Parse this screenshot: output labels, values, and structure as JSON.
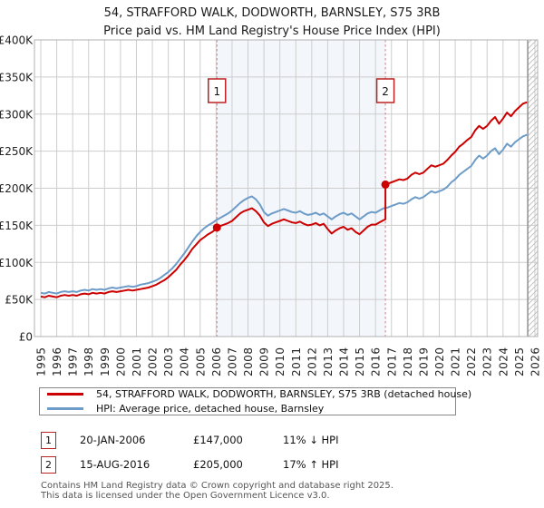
{
  "title": {
    "line1": "54, STRAFFORD WALK, DODWORTH, BARNSLEY, S75 3RB",
    "line2": "Price paid vs. HM Land Registry's House Price Index (HPI)"
  },
  "chart_data": {
    "type": "line",
    "title": "54, STRAFFORD WALK, DODWORTH, BARNSLEY, S75 3RB — Price paid vs. HPI",
    "xlabel": "",
    "ylabel": "",
    "x_range": [
      1995,
      2026
    ],
    "ylim": [
      0,
      400000
    ],
    "grid": true,
    "x_axis": {
      "ticks": [
        1995,
        1996,
        1997,
        1998,
        1999,
        2000,
        2001,
        2002,
        2003,
        2004,
        2005,
        2006,
        2007,
        2008,
        2009,
        2010,
        2011,
        2012,
        2013,
        2014,
        2015,
        2016,
        2017,
        2018,
        2019,
        2020,
        2021,
        2022,
        2023,
        2024,
        2025,
        2026
      ]
    },
    "y_axis": {
      "max": 400000,
      "ticks": [
        {
          "value": 0,
          "label": "£0"
        },
        {
          "value": 50000,
          "label": "£50K"
        },
        {
          "value": 100000,
          "label": "£100K"
        },
        {
          "value": 150000,
          "label": "£150K"
        },
        {
          "value": 200000,
          "label": "£200K"
        },
        {
          "value": 250000,
          "label": "£250K"
        },
        {
          "value": 300000,
          "label": "£300K"
        },
        {
          "value": 350000,
          "label": "£350K"
        },
        {
          "value": 400000,
          "label": "£400K"
        }
      ]
    },
    "colors": {
      "property": "#cc0000",
      "hpi": "#6d9cc8",
      "shade": "rgba(100,140,210,0.08)",
      "dashed": "#e07878",
      "grid": "#cdcdcd",
      "border": "#b0b0b0",
      "hatch": "#c4c4c4",
      "cutoff": "#909090",
      "annotation_border": "#bb2222"
    },
    "shade_between": [
      2006.05,
      2016.62
    ],
    "hatch_from_year": 2025.55,
    "sales": [
      {
        "n": "1",
        "date": "20-JAN-2006",
        "year_frac": 2006.05,
        "price": 147000,
        "price_label": "£147,000",
        "hpi_delta": "11% ↓ HPI"
      },
      {
        "n": "2",
        "date": "15-AUG-2016",
        "year_frac": 2016.62,
        "price": 205000,
        "price_label": "£205,000",
        "hpi_delta": "17% ↑ HPI"
      }
    ],
    "series": [
      {
        "name": "54, STRAFFORD WALK, DODWORTH, BARNSLEY, S75 3RB (detached house)",
        "color": "#cc0000",
        "points": [
          [
            1995.0,
            54000
          ],
          [
            1995.25,
            53000
          ],
          [
            1995.5,
            55000
          ],
          [
            1995.75,
            54000
          ],
          [
            1996.0,
            53000
          ],
          [
            1996.25,
            55000
          ],
          [
            1996.5,
            56000
          ],
          [
            1996.75,
            55000
          ],
          [
            1997.0,
            56000
          ],
          [
            1997.25,
            55000
          ],
          [
            1997.5,
            57000
          ],
          [
            1997.75,
            58000
          ],
          [
            1998.0,
            57000
          ],
          [
            1998.25,
            59000
          ],
          [
            1998.5,
            58000
          ],
          [
            1998.75,
            59000
          ],
          [
            1999.0,
            58000
          ],
          [
            1999.25,
            60000
          ],
          [
            1999.5,
            61000
          ],
          [
            1999.75,
            60000
          ],
          [
            2000.0,
            61000
          ],
          [
            2000.25,
            62000
          ],
          [
            2000.5,
            63000
          ],
          [
            2000.75,
            62000
          ],
          [
            2001.0,
            63000
          ],
          [
            2001.25,
            64000
          ],
          [
            2001.5,
            65000
          ],
          [
            2001.75,
            66000
          ],
          [
            2002.0,
            68000
          ],
          [
            2002.25,
            70000
          ],
          [
            2002.5,
            73000
          ],
          [
            2002.75,
            76000
          ],
          [
            2003.0,
            80000
          ],
          [
            2003.25,
            85000
          ],
          [
            2003.5,
            90000
          ],
          [
            2003.75,
            97000
          ],
          [
            2004.0,
            103000
          ],
          [
            2004.25,
            110000
          ],
          [
            2004.5,
            118000
          ],
          [
            2004.75,
            124000
          ],
          [
            2005.0,
            130000
          ],
          [
            2005.25,
            134000
          ],
          [
            2005.5,
            138000
          ],
          [
            2005.75,
            141000
          ],
          [
            2006.0,
            145000
          ],
          [
            2006.05,
            147000
          ],
          [
            2006.25,
            149000
          ],
          [
            2006.5,
            151000
          ],
          [
            2006.75,
            153000
          ],
          [
            2007.0,
            156000
          ],
          [
            2007.25,
            161000
          ],
          [
            2007.5,
            166000
          ],
          [
            2007.75,
            169000
          ],
          [
            2008.0,
            171000
          ],
          [
            2008.25,
            173000
          ],
          [
            2008.5,
            169000
          ],
          [
            2008.75,
            163000
          ],
          [
            2009.0,
            154000
          ],
          [
            2009.25,
            149000
          ],
          [
            2009.5,
            152000
          ],
          [
            2009.75,
            154000
          ],
          [
            2010.0,
            156000
          ],
          [
            2010.25,
            158000
          ],
          [
            2010.5,
            156000
          ],
          [
            2010.75,
            154000
          ],
          [
            2011.0,
            153000
          ],
          [
            2011.25,
            155000
          ],
          [
            2011.5,
            152000
          ],
          [
            2011.75,
            150000
          ],
          [
            2012.0,
            151000
          ],
          [
            2012.25,
            153000
          ],
          [
            2012.5,
            150000
          ],
          [
            2012.75,
            152000
          ],
          [
            2013.0,
            145000
          ],
          [
            2013.25,
            139000
          ],
          [
            2013.5,
            143000
          ],
          [
            2013.75,
            146000
          ],
          [
            2014.0,
            148000
          ],
          [
            2014.25,
            144000
          ],
          [
            2014.5,
            146000
          ],
          [
            2014.75,
            141000
          ],
          [
            2015.0,
            138000
          ],
          [
            2015.25,
            143000
          ],
          [
            2015.5,
            148000
          ],
          [
            2015.75,
            151000
          ],
          [
            2016.0,
            151000
          ],
          [
            2016.25,
            154000
          ],
          [
            2016.5,
            157000
          ],
          [
            2016.62,
            158000
          ],
          [
            2016.62,
            205000
          ],
          [
            2016.75,
            206000
          ],
          [
            2017.0,
            208000
          ],
          [
            2017.25,
            210000
          ],
          [
            2017.5,
            212000
          ],
          [
            2017.75,
            211000
          ],
          [
            2018.0,
            213000
          ],
          [
            2018.25,
            218000
          ],
          [
            2018.5,
            221000
          ],
          [
            2018.75,
            219000
          ],
          [
            2019.0,
            221000
          ],
          [
            2019.25,
            226000
          ],
          [
            2019.5,
            231000
          ],
          [
            2019.75,
            229000
          ],
          [
            2020.0,
            231000
          ],
          [
            2020.25,
            233000
          ],
          [
            2020.5,
            238000
          ],
          [
            2020.75,
            244000
          ],
          [
            2021.0,
            249000
          ],
          [
            2021.25,
            256000
          ],
          [
            2021.5,
            260000
          ],
          [
            2021.75,
            265000
          ],
          [
            2022.0,
            269000
          ],
          [
            2022.25,
            278000
          ],
          [
            2022.5,
            284000
          ],
          [
            2022.75,
            280000
          ],
          [
            2023.0,
            284000
          ],
          [
            2023.25,
            291000
          ],
          [
            2023.5,
            296000
          ],
          [
            2023.75,
            287000
          ],
          [
            2024.0,
            294000
          ],
          [
            2024.25,
            302000
          ],
          [
            2024.5,
            297000
          ],
          [
            2024.75,
            304000
          ],
          [
            2025.0,
            309000
          ],
          [
            2025.25,
            314000
          ],
          [
            2025.5,
            316000
          ]
        ]
      },
      {
        "name": "HPI: Average price, detached house, Barnsley",
        "color": "#6d9cc8",
        "points": [
          [
            1995.0,
            59000
          ],
          [
            1995.25,
            58000
          ],
          [
            1995.5,
            60000
          ],
          [
            1995.75,
            59000
          ],
          [
            1996.0,
            58000
          ],
          [
            1996.25,
            60000
          ],
          [
            1996.5,
            61000
          ],
          [
            1996.75,
            60000
          ],
          [
            1997.0,
            61000
          ],
          [
            1997.25,
            60000
          ],
          [
            1997.5,
            62000
          ],
          [
            1997.75,
            63000
          ],
          [
            1998.0,
            62000
          ],
          [
            1998.25,
            64000
          ],
          [
            1998.5,
            63000
          ],
          [
            1998.75,
            64000
          ],
          [
            1999.0,
            63000
          ],
          [
            1999.25,
            65000
          ],
          [
            1999.5,
            66000
          ],
          [
            1999.75,
            65000
          ],
          [
            2000.0,
            66000
          ],
          [
            2000.25,
            67000
          ],
          [
            2000.5,
            68000
          ],
          [
            2000.75,
            67000
          ],
          [
            2001.0,
            68000
          ],
          [
            2001.25,
            70000
          ],
          [
            2001.5,
            71000
          ],
          [
            2001.75,
            72000
          ],
          [
            2002.0,
            74000
          ],
          [
            2002.25,
            76000
          ],
          [
            2002.5,
            79000
          ],
          [
            2002.75,
            83000
          ],
          [
            2003.0,
            87000
          ],
          [
            2003.25,
            92000
          ],
          [
            2003.5,
            98000
          ],
          [
            2003.75,
            105000
          ],
          [
            2004.0,
            112000
          ],
          [
            2004.25,
            120000
          ],
          [
            2004.5,
            128000
          ],
          [
            2004.75,
            135000
          ],
          [
            2005.0,
            141000
          ],
          [
            2005.25,
            146000
          ],
          [
            2005.5,
            150000
          ],
          [
            2005.75,
            153000
          ],
          [
            2006.0,
            157000
          ],
          [
            2006.25,
            160000
          ],
          [
            2006.5,
            163000
          ],
          [
            2006.75,
            166000
          ],
          [
            2007.0,
            170000
          ],
          [
            2007.25,
            175000
          ],
          [
            2007.5,
            180000
          ],
          [
            2007.75,
            184000
          ],
          [
            2008.0,
            187000
          ],
          [
            2008.25,
            189000
          ],
          [
            2008.5,
            185000
          ],
          [
            2008.75,
            178000
          ],
          [
            2009.0,
            168000
          ],
          [
            2009.25,
            163000
          ],
          [
            2009.5,
            166000
          ],
          [
            2009.75,
            168000
          ],
          [
            2010.0,
            170000
          ],
          [
            2010.25,
            172000
          ],
          [
            2010.5,
            170000
          ],
          [
            2010.75,
            168000
          ],
          [
            2011.0,
            167000
          ],
          [
            2011.25,
            169000
          ],
          [
            2011.5,
            166000
          ],
          [
            2011.75,
            164000
          ],
          [
            2012.0,
            165000
          ],
          [
            2012.25,
            167000
          ],
          [
            2012.5,
            164000
          ],
          [
            2012.75,
            166000
          ],
          [
            2013.0,
            162000
          ],
          [
            2013.25,
            158000
          ],
          [
            2013.5,
            162000
          ],
          [
            2013.75,
            165000
          ],
          [
            2014.0,
            167000
          ],
          [
            2014.25,
            164000
          ],
          [
            2014.5,
            166000
          ],
          [
            2014.75,
            162000
          ],
          [
            2015.0,
            158000
          ],
          [
            2015.25,
            162000
          ],
          [
            2015.5,
            166000
          ],
          [
            2015.75,
            168000
          ],
          [
            2016.0,
            167000
          ],
          [
            2016.25,
            170000
          ],
          [
            2016.5,
            173000
          ],
          [
            2016.75,
            174000
          ],
          [
            2017.0,
            176000
          ],
          [
            2017.25,
            178000
          ],
          [
            2017.5,
            180000
          ],
          [
            2017.75,
            179000
          ],
          [
            2018.0,
            181000
          ],
          [
            2018.25,
            185000
          ],
          [
            2018.5,
            188000
          ],
          [
            2018.75,
            186000
          ],
          [
            2019.0,
            188000
          ],
          [
            2019.25,
            192000
          ],
          [
            2019.5,
            196000
          ],
          [
            2019.75,
            194000
          ],
          [
            2020.0,
            196000
          ],
          [
            2020.25,
            198000
          ],
          [
            2020.5,
            202000
          ],
          [
            2020.75,
            208000
          ],
          [
            2021.0,
            212000
          ],
          [
            2021.25,
            218000
          ],
          [
            2021.5,
            222000
          ],
          [
            2021.75,
            226000
          ],
          [
            2022.0,
            230000
          ],
          [
            2022.25,
            238000
          ],
          [
            2022.5,
            244000
          ],
          [
            2022.75,
            240000
          ],
          [
            2023.0,
            244000
          ],
          [
            2023.25,
            250000
          ],
          [
            2023.5,
            254000
          ],
          [
            2023.75,
            246000
          ],
          [
            2024.0,
            252000
          ],
          [
            2024.25,
            260000
          ],
          [
            2024.5,
            256000
          ],
          [
            2024.75,
            262000
          ],
          [
            2025.0,
            266000
          ],
          [
            2025.25,
            270000
          ],
          [
            2025.5,
            272000
          ]
        ]
      }
    ]
  },
  "legend": {
    "items": [
      {
        "label": "54, STRAFFORD WALK, DODWORTH, BARNSLEY, S75 3RB (detached house)",
        "color": "#cc0000"
      },
      {
        "label": "HPI: Average price, detached house, Barnsley",
        "color": "#6d9cc8"
      }
    ]
  },
  "table": {
    "rows": [
      {
        "num": "1",
        "date": "20-JAN-2006",
        "price": "£147,000",
        "hpi": "11% ↓ HPI"
      },
      {
        "num": "2",
        "date": "15-AUG-2016",
        "price": "£205,000",
        "hpi": "17% ↑ HPI"
      }
    ]
  },
  "footer": {
    "line1": "Contains HM Land Registry data © Crown copyright and database right 2025.",
    "line2": "This data is licensed under the Open Government Licence v3.0."
  }
}
